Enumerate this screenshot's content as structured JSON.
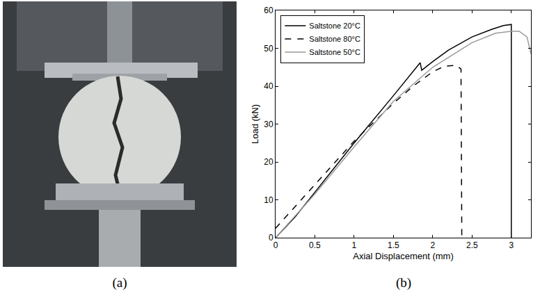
{
  "photo_panel": {
    "label": "(a)"
  },
  "chart_panel": {
    "label": "(b)"
  },
  "chart_data": {
    "type": "line",
    "x_label": "Axial Displacement (mm)",
    "y_label": "Load (kN)",
    "xlim": [
      0,
      3.25
    ],
    "xticks": [
      0,
      0.5,
      1,
      1.5,
      2,
      2.5,
      3
    ],
    "ylim": [
      0,
      60
    ],
    "yticks": [
      0,
      10,
      20,
      30,
      40,
      50,
      60
    ],
    "grid": false,
    "legend": "upper left",
    "series": [
      {
        "name": "Saltstone 20°C",
        "color": "#000000",
        "line_style": "solid",
        "x": [
          0,
          0.25,
          0.5,
          1.0,
          1.5,
          1.84,
          1.86,
          2.0,
          2.2,
          2.5,
          2.75,
          2.9,
          3.0,
          3.0
        ],
        "values": [
          0,
          5.5,
          12,
          25,
          37.5,
          46.2,
          44.2,
          46.5,
          49.5,
          53,
          55,
          56,
          56.3,
          0
        ]
      },
      {
        "name": "Saltstone 80°C",
        "color": "#000000",
        "line_style": "dashed",
        "x": [
          0,
          0.5,
          1.0,
          1.25,
          1.5,
          1.75,
          2.0,
          2.15,
          2.3,
          2.36,
          2.37
        ],
        "values": [
          2.5,
          14,
          25.5,
          30.5,
          35.5,
          40,
          43.8,
          45.3,
          45.5,
          44.5,
          0
        ]
      },
      {
        "name": "Saltstone 50°C",
        "color": "#999999",
        "line_style": "solid",
        "x": [
          0,
          0.5,
          1.0,
          1.5,
          2.0,
          2.5,
          2.8,
          3.0,
          3.1,
          3.2,
          3.25
        ],
        "values": [
          0,
          11.5,
          24,
          36,
          45,
          51.5,
          54,
          54.5,
          54.5,
          53,
          48.5
        ]
      }
    ]
  }
}
